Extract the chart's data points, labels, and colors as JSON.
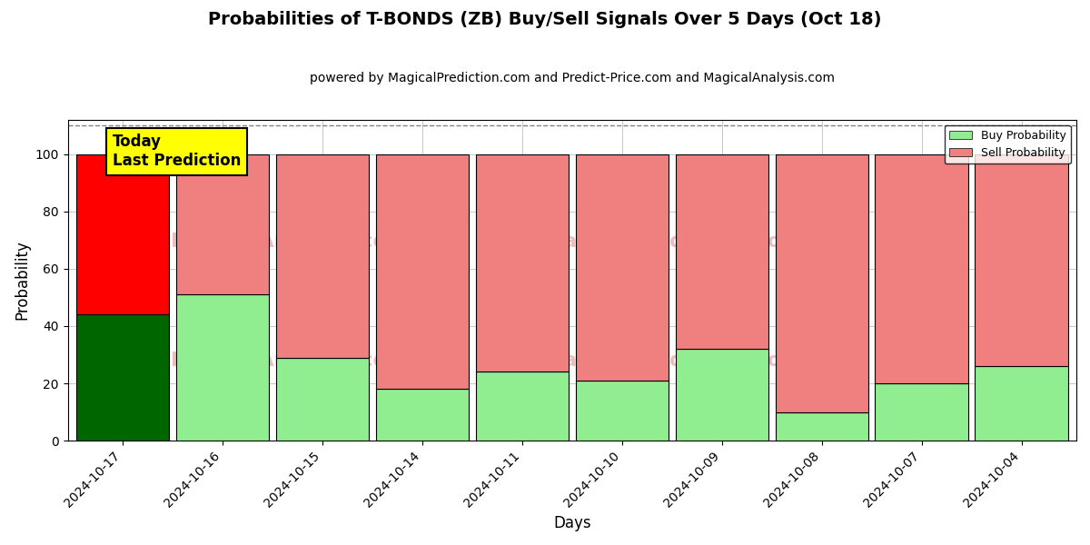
{
  "title": "Probabilities of T-BONDS (ZB) Buy/Sell Signals Over 5 Days (Oct 18)",
  "subtitle": "powered by MagicalPrediction.com and Predict-Price.com and MagicalAnalysis.com",
  "xlabel": "Days",
  "ylabel": "Probability",
  "categories": [
    "2024-10-17",
    "2024-10-16",
    "2024-10-15",
    "2024-10-14",
    "2024-10-11",
    "2024-10-10",
    "2024-10-09",
    "2024-10-08",
    "2024-10-07",
    "2024-10-04"
  ],
  "buy_values": [
    44,
    51,
    29,
    18,
    24,
    21,
    32,
    10,
    20,
    26
  ],
  "sell_values": [
    56,
    49,
    71,
    82,
    76,
    79,
    68,
    90,
    80,
    74
  ],
  "today_buy_color": "#006600",
  "today_sell_color": "#ff0000",
  "buy_color": "#90EE90",
  "sell_color": "#F08080",
  "buy_label": "Buy Probability",
  "sell_label": "Sell Probability",
  "today_label_line1": "Today",
  "today_label_line2": "Last Prediction",
  "today_label_bg": "#ffff00",
  "ylim": [
    0,
    112
  ],
  "dashed_line_y": 110,
  "background_color": "#ffffff",
  "title_fontsize": 14,
  "subtitle_fontsize": 10,
  "axis_label_fontsize": 12,
  "tick_fontsize": 10
}
